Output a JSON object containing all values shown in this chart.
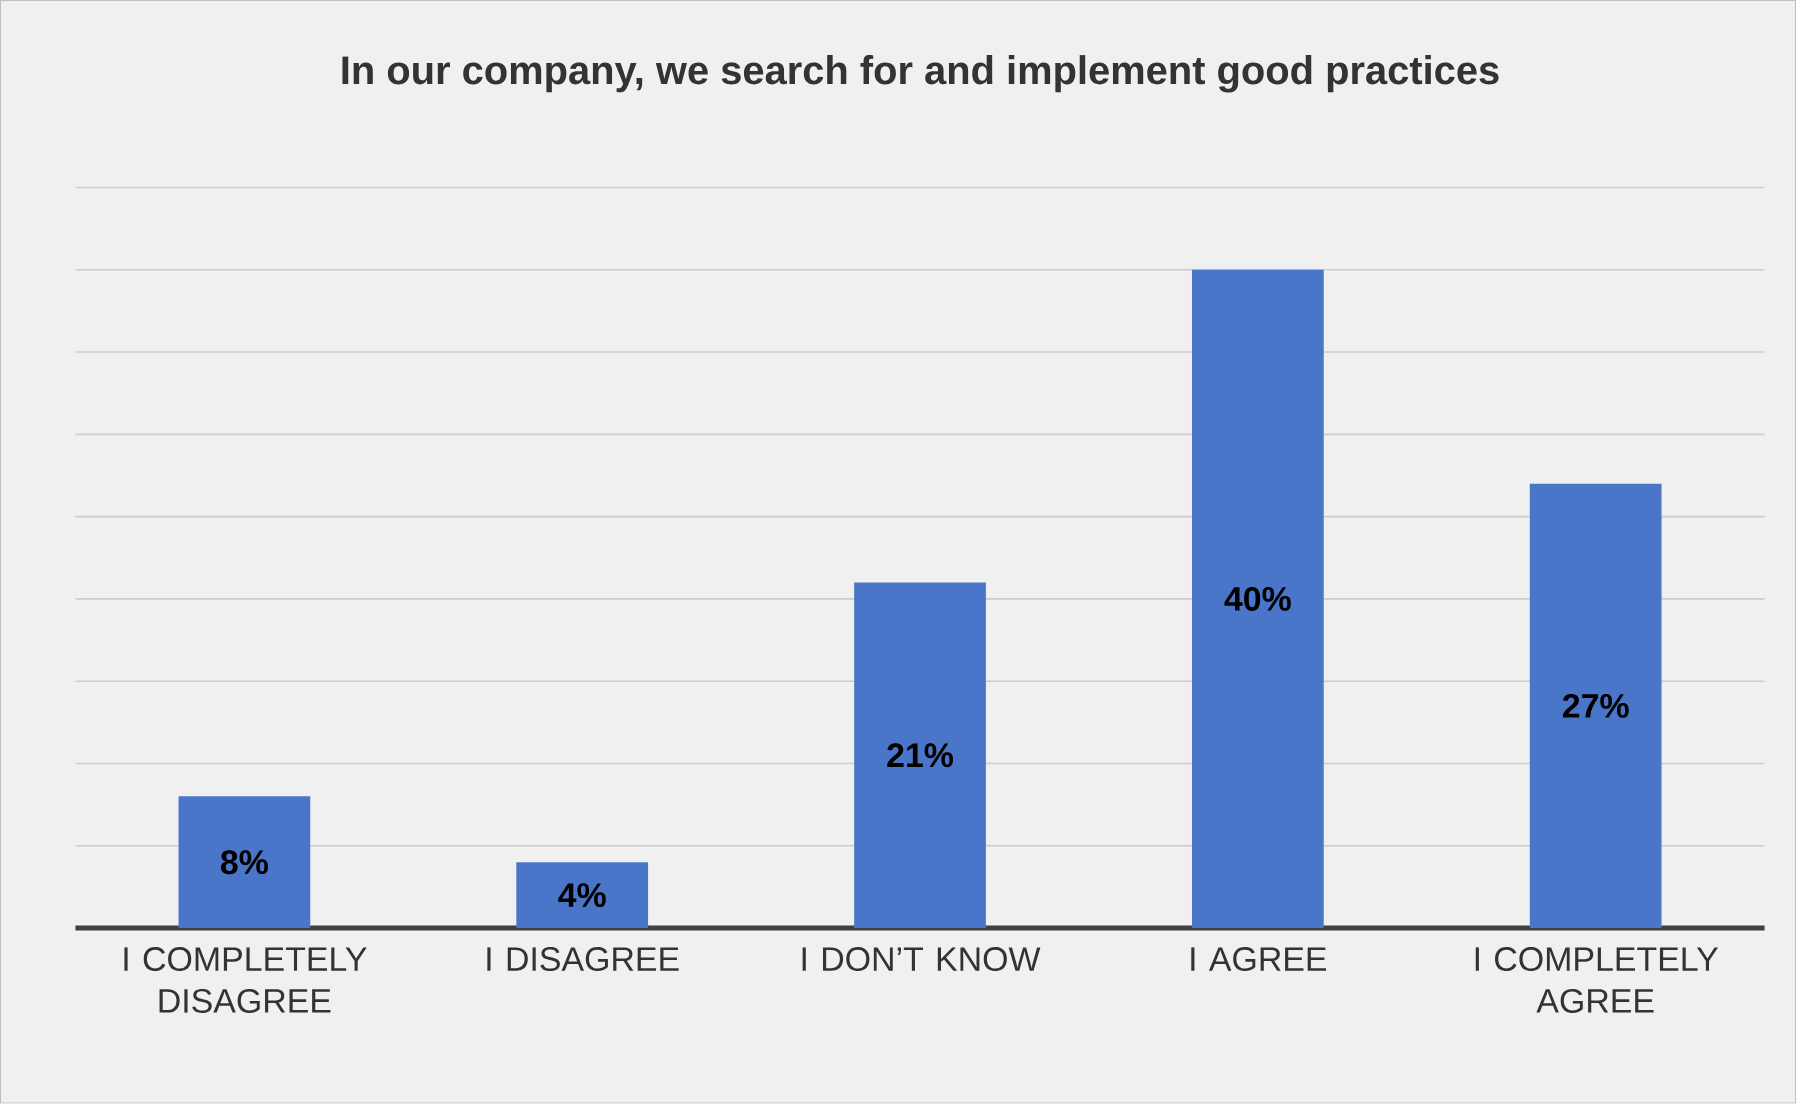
{
  "chart_data": {
    "type": "bar",
    "title": "In our company, we search for and implement good practices",
    "categories": [
      "I COMPLETELY DISAGREE",
      "I DISAGREE",
      "I DON’T KNOW",
      "I AGREE",
      "I COMPLETELY AGREE"
    ],
    "values": [
      8,
      4,
      21,
      40,
      27
    ],
    "value_labels": [
      "8%",
      "4%",
      "21%",
      "40%",
      "27%"
    ],
    "color": "#4a76c9",
    "ylim": [
      0,
      45
    ],
    "yticks": [
      {
        "value": 0,
        "label": null
      },
      {
        "value": 5,
        "label": null
      },
      {
        "value": 10,
        "label": null
      },
      {
        "value": 15,
        "label": null
      },
      {
        "value": 20,
        "label": null
      },
      {
        "value": 25,
        "label": null
      },
      {
        "value": 30,
        "label": null
      },
      {
        "value": 35,
        "label": null
      },
      {
        "value": 40,
        "label": null
      },
      {
        "value": 45,
        "label": null
      }
    ],
    "grid": "y",
    "tick_labels": "x"
  }
}
